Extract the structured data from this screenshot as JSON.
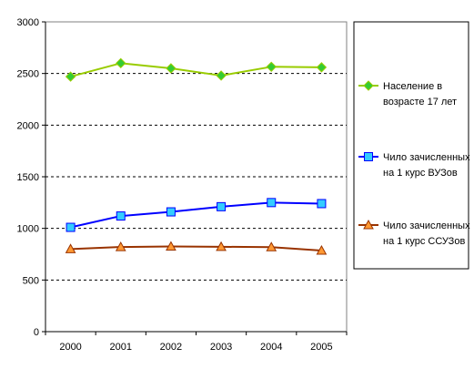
{
  "chart_data": {
    "type": "line",
    "title": "",
    "xlabel": "",
    "ylabel": "",
    "categories": [
      "2000",
      "2001",
      "2002",
      "2003",
      "2004",
      "2005"
    ],
    "ylim": [
      0,
      3000
    ],
    "yticks": [
      "0",
      "500",
      "1000",
      "1500",
      "2000",
      "2500",
      "3000"
    ],
    "grid": true,
    "legend_position": "right",
    "series": [
      {
        "name": "Население в возрасте 17 лет",
        "name_lines": [
          "Население в",
          "возрасте 17 лет"
        ],
        "values": [
          2470,
          2600,
          2550,
          2480,
          2565,
          2560
        ],
        "color": "#99cc00",
        "marker": "diamond",
        "marker_fill": "#33cc33"
      },
      {
        "name": "Чило зачисленных на 1 курс ВУЗов",
        "name_lines": [
          "Чило зачисленных",
          "на 1 курс ВУЗов"
        ],
        "values": [
          1010,
          1120,
          1160,
          1210,
          1250,
          1240
        ],
        "color": "#0000ff",
        "marker": "square",
        "marker_fill": "#33ccff"
      },
      {
        "name": "Чило зачисленных на 1 курс ССУЗов",
        "name_lines": [
          "Чило зачисленных",
          "на 1 курс ССУЗов"
        ],
        "values": [
          800,
          820,
          825,
          822,
          818,
          785
        ],
        "color": "#993300",
        "marker": "triangle",
        "marker_fill": "#ff9933"
      }
    ]
  }
}
